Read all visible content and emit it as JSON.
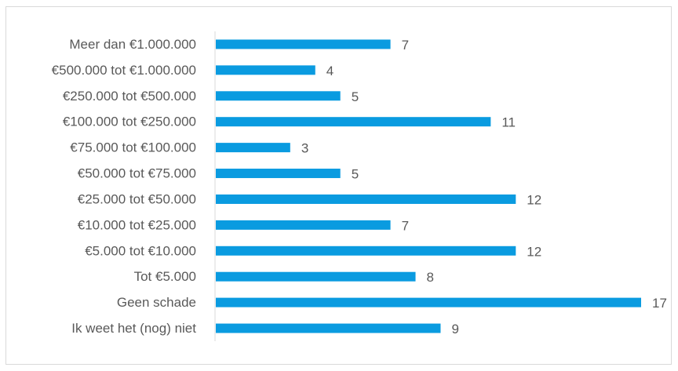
{
  "chart_data": {
    "type": "bar",
    "orientation": "horizontal",
    "categories": [
      "Meer dan €1.000.000",
      "€500.000 tot €1.000.000",
      "€250.000 tot €500.000",
      "€100.000 tot €250.000",
      "€75.000 tot €100.000",
      "€50.000 tot €75.000",
      "€25.000 tot €50.000",
      "€10.000 tot €25.000",
      "€5.000 tot €10.000",
      "Tot €5.000",
      "Geen schade",
      "Ik weet het (nog) niet"
    ],
    "values": [
      7,
      4,
      5,
      11,
      3,
      5,
      12,
      7,
      12,
      8,
      17,
      9
    ],
    "title": "",
    "xlabel": "",
    "ylabel": "",
    "xlim": [
      0,
      17
    ],
    "grid": false,
    "legend": "none",
    "data_labels": true,
    "bar_color": "#0a9be0",
    "axis_color": "#d9d9d9",
    "text_color": "#595959"
  }
}
